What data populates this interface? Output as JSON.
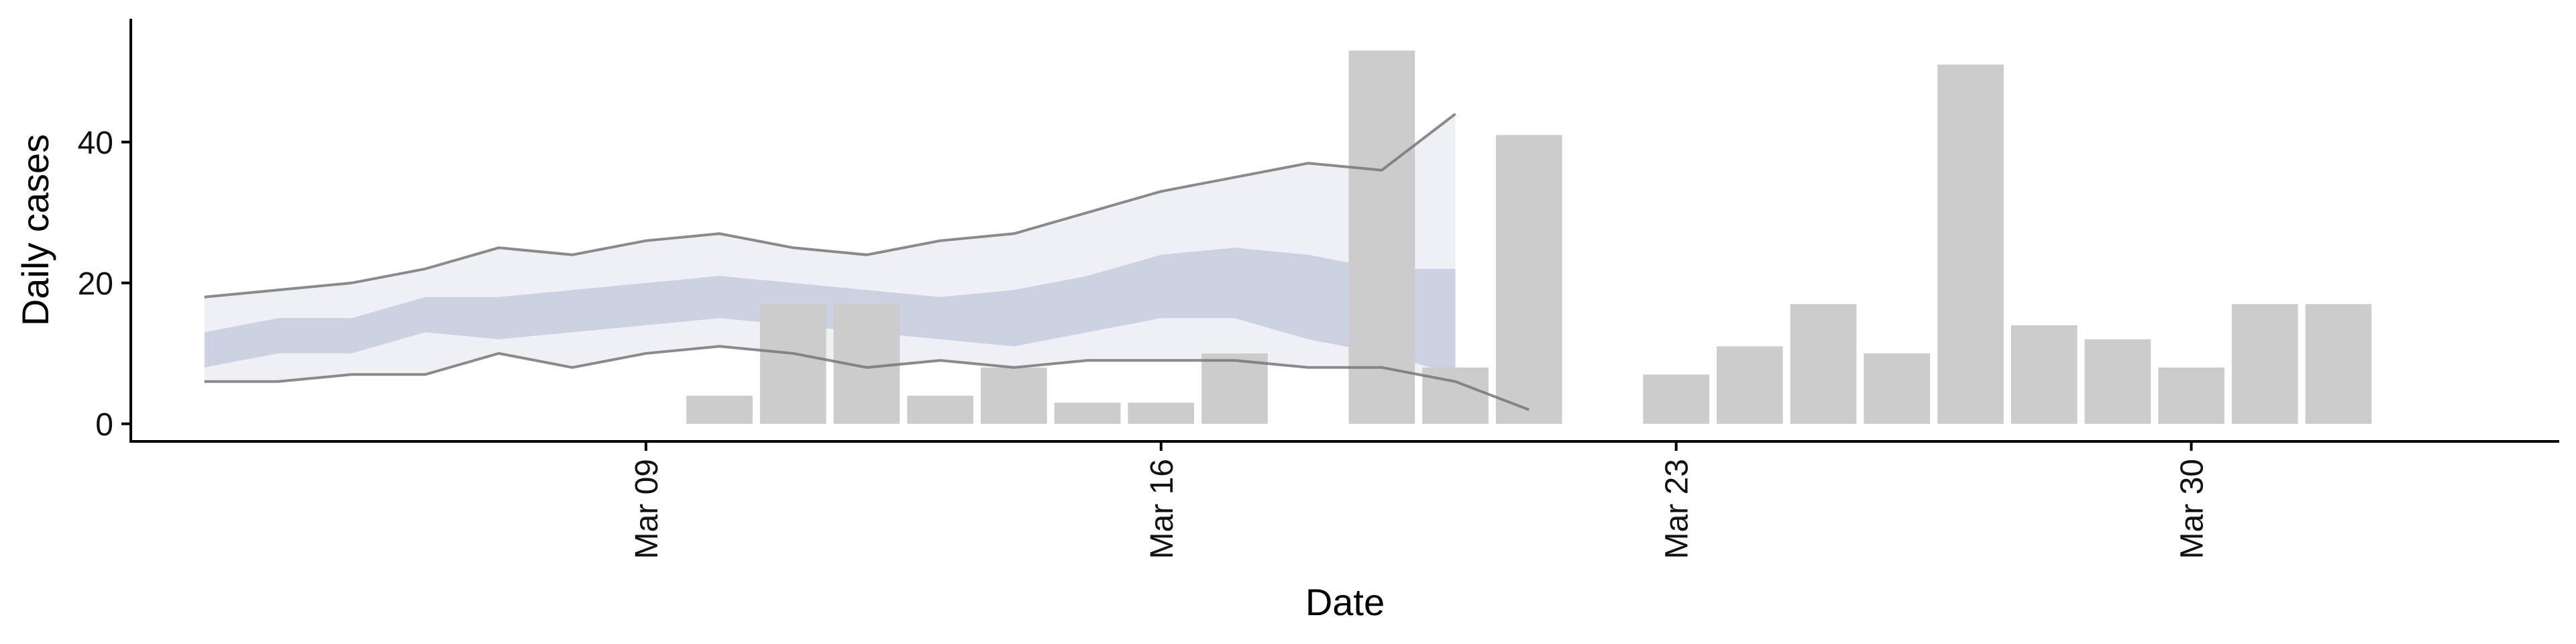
{
  "chart_data": {
    "type": "bar",
    "xlabel": "Date",
    "ylabel": "Daily cases",
    "ylim": [
      -2.5,
      57.5
    ],
    "xlim": [
      "2020-03-02",
      "2020-04-04"
    ],
    "grid": false,
    "legend": "none",
    "x_ticks": [
      {
        "date": "2020-03-09",
        "label": "Mar 09"
      },
      {
        "date": "2020-03-16",
        "label": "Mar 16"
      },
      {
        "date": "2020-03-23",
        "label": "Mar 23"
      },
      {
        "date": "2020-03-30",
        "label": "Mar 30"
      }
    ],
    "y_ticks": [
      {
        "value": 0,
        "label": "0"
      },
      {
        "value": 20,
        "label": "20"
      },
      {
        "value": 40,
        "label": "40"
      }
    ],
    "bars": {
      "color": "#cccccc",
      "x": [
        "2020-03-10",
        "2020-03-11",
        "2020-03-12",
        "2020-03-13",
        "2020-03-14",
        "2020-03-15",
        "2020-03-16",
        "2020-03-17",
        "2020-03-19",
        "2020-03-20",
        "2020-03-21",
        "2020-03-23",
        "2020-03-24",
        "2020-03-25",
        "2020-03-26",
        "2020-03-27",
        "2020-03-28",
        "2020-03-29",
        "2020-03-30",
        "2020-03-31",
        "2020-04-01"
      ],
      "values": [
        4,
        17,
        17,
        4,
        8,
        3,
        3,
        10,
        53,
        8,
        41,
        7,
        11,
        17,
        10,
        51,
        14,
        12,
        8,
        17,
        17
      ]
    },
    "ribbon": {
      "color": "#5a6aa0",
      "x": [
        "2020-03-03",
        "2020-03-04",
        "2020-03-05",
        "2020-03-06",
        "2020-03-07",
        "2020-03-08",
        "2020-03-09",
        "2020-03-10",
        "2020-03-11",
        "2020-03-12",
        "2020-03-13",
        "2020-03-14",
        "2020-03-15",
        "2020-03-16",
        "2020-03-17",
        "2020-03-18",
        "2020-03-19",
        "2020-03-20",
        "2020-03-21",
        "2020-03-22",
        "2020-03-23"
      ],
      "lower_90": [
        6,
        6,
        7,
        7,
        10,
        8,
        10,
        11,
        10,
        8,
        9,
        8,
        9,
        9,
        9,
        8,
        8,
        6,
        2,
        null,
        null
      ],
      "upper_90": [
        18,
        19,
        20,
        22,
        25,
        24,
        26,
        27,
        25,
        24,
        26,
        27,
        30,
        33,
        35,
        37,
        36,
        44,
        null,
        null,
        null
      ],
      "lower_50": [
        8,
        10,
        10,
        13,
        12,
        13,
        14,
        15,
        14,
        13,
        12,
        11,
        13,
        15,
        15,
        12,
        10,
        7,
        null,
        null,
        null
      ],
      "upper_50": [
        13,
        15,
        15,
        18,
        18,
        19,
        20,
        21,
        20,
        19,
        18,
        19,
        21,
        24,
        25,
        24,
        22,
        22,
        null,
        null,
        null
      ]
    }
  }
}
